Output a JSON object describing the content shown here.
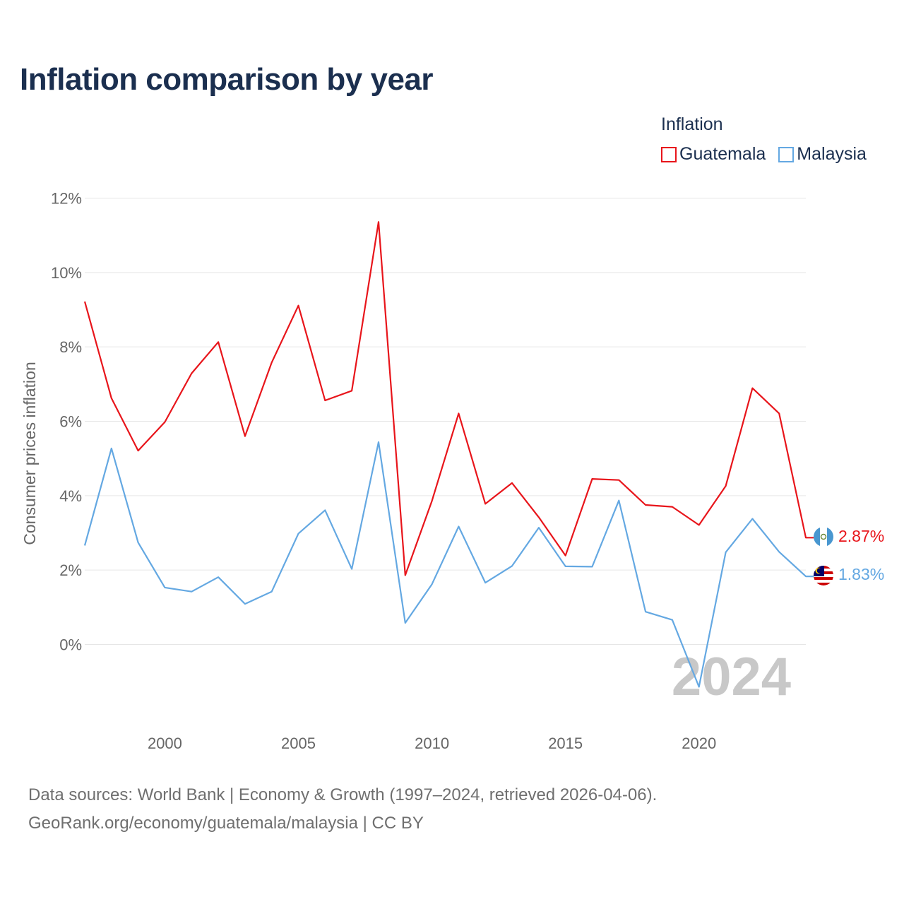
{
  "title": "Inflation comparison by year",
  "legend": {
    "title": "Inflation",
    "items": [
      {
        "name": "Guatemala",
        "color": "#e8151b"
      },
      {
        "name": "Malaysia",
        "color": "#64a8e2"
      }
    ]
  },
  "source": {
    "line1": "Data sources: World Bank | Economy & Growth (1997–2024, retrieved 2026-04-06).",
    "line2": "GeoRank.org/economy/guatemala/malaysia | CC BY"
  },
  "chart_data": {
    "type": "line",
    "title": "Inflation comparison by year",
    "xlabel": "",
    "ylabel": "Consumer prices inflation",
    "x": [
      1997,
      1998,
      1999,
      2000,
      2001,
      2002,
      2003,
      2004,
      2005,
      2006,
      2007,
      2008,
      2009,
      2010,
      2011,
      2012,
      2013,
      2014,
      2015,
      2016,
      2017,
      2018,
      2019,
      2020,
      2021,
      2022,
      2023,
      2024
    ],
    "xlim": [
      1997,
      2024
    ],
    "ylim": [
      -2,
      12
    ],
    "x_ticks": [
      2000,
      2005,
      2010,
      2015,
      2020
    ],
    "y_ticks": [
      {
        "value": 0,
        "label": "0%"
      },
      {
        "value": 2,
        "label": "2%"
      },
      {
        "value": 4,
        "label": "4%"
      },
      {
        "value": 6,
        "label": "6%"
      },
      {
        "value": 8,
        "label": "8%"
      },
      {
        "value": 10,
        "label": "10%"
      },
      {
        "value": 12,
        "label": "12%"
      }
    ],
    "grid": true,
    "current_year_label": "2024",
    "series": [
      {
        "name": "Guatemala",
        "color": "#e8151b",
        "end_label": "2.87%",
        "values": [
          9.22,
          6.62,
          5.21,
          5.98,
          7.29,
          8.13,
          5.6,
          7.58,
          9.11,
          6.56,
          6.82,
          11.36,
          1.86,
          3.86,
          6.21,
          3.78,
          4.34,
          3.42,
          2.39,
          4.45,
          4.42,
          3.75,
          3.7,
          3.21,
          4.26,
          6.89,
          6.21,
          2.87
        ]
      },
      {
        "name": "Malaysia",
        "color": "#64a8e2",
        "end_label": "1.83%",
        "values": [
          2.66,
          5.27,
          2.74,
          1.53,
          1.42,
          1.81,
          1.09,
          1.42,
          2.98,
          3.61,
          2.03,
          5.44,
          0.58,
          1.62,
          3.17,
          1.66,
          2.11,
          3.14,
          2.1,
          2.09,
          3.87,
          0.88,
          0.66,
          -1.14,
          2.48,
          3.38,
          2.49,
          1.83
        ]
      }
    ]
  }
}
